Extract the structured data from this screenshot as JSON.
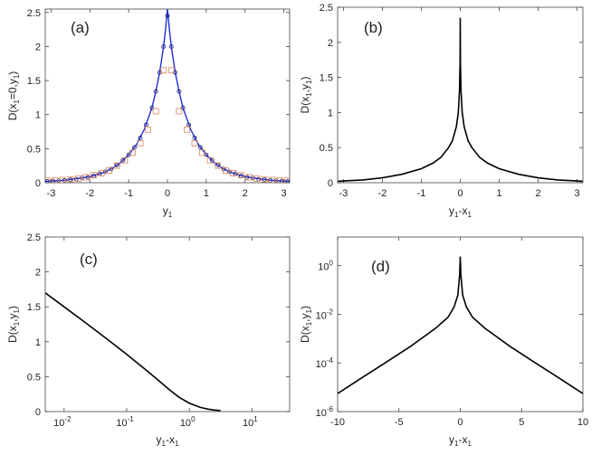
{
  "colors": {
    "axis": "#444444",
    "curve_a": "#1f2fd6",
    "marker_circle": "#1a1a66",
    "marker_square": "#d9835a",
    "curve": "#000000"
  },
  "chart_data": [
    {
      "id": "a",
      "panel_label": "(a)",
      "type": "line",
      "xlabel": "y",
      "xlabel_sub": "1",
      "ylabel_parts": [
        "D(x",
        "1",
        "=0,y",
        "1",
        ")"
      ],
      "xlim": [
        -3.15,
        3.15
      ],
      "ylim": [
        0,
        2.55
      ],
      "xscale": "linear",
      "yscale": "linear",
      "xticks": [
        -3,
        -2,
        -1,
        0,
        1,
        2,
        3
      ],
      "xticklabels": [
        "-3",
        "-2",
        "-1",
        "0",
        "1",
        "2",
        "3"
      ],
      "yticks": [
        0,
        0.5,
        1,
        1.5,
        2,
        2.5
      ],
      "yticklabels": [
        "0",
        "0.5",
        "1",
        "1.5",
        "2",
        "2.5"
      ],
      "grid": false,
      "series": [
        {
          "kind": "line",
          "x": [
            -3.14,
            -3,
            -2.8,
            -2.6,
            -2.4,
            -2.2,
            -2,
            -1.8,
            -1.6,
            -1.4,
            -1.2,
            -1,
            -0.8,
            -0.6,
            -0.4,
            -0.3,
            -0.2,
            -0.1,
            -0.05,
            0,
            0.05,
            0.1,
            0.2,
            0.3,
            0.4,
            0.6,
            0.8,
            1,
            1.2,
            1.4,
            1.6,
            1.8,
            2,
            2.2,
            2.4,
            2.6,
            2.8,
            3,
            3.14
          ],
          "y": [
            0.02,
            0.025,
            0.03,
            0.04,
            0.055,
            0.07,
            0.09,
            0.12,
            0.16,
            0.22,
            0.3,
            0.41,
            0.56,
            0.78,
            1.1,
            1.34,
            1.62,
            2.0,
            2.25,
            2.55,
            2.25,
            2.0,
            1.62,
            1.34,
            1.1,
            0.78,
            0.56,
            0.41,
            0.3,
            0.22,
            0.16,
            0.12,
            0.09,
            0.07,
            0.055,
            0.04,
            0.03,
            0.025,
            0.02
          ]
        },
        {
          "kind": "circles",
          "x": [
            -3.1,
            -2.95,
            -2.8,
            -2.65,
            -2.5,
            -2.35,
            -2.2,
            -2.05,
            -1.9,
            -1.75,
            -1.6,
            -1.45,
            -1.3,
            -1.15,
            -1,
            -0.85,
            -0.7,
            -0.55,
            -0.4,
            -0.3,
            -0.2,
            -0.1,
            0,
            0.1,
            0.2,
            0.3,
            0.4,
            0.55,
            0.7,
            0.85,
            1,
            1.15,
            1.3,
            1.45,
            1.6,
            1.75,
            1.9,
            2.05,
            2.2,
            2.35,
            2.5,
            2.65,
            2.8,
            2.95,
            3.1
          ],
          "y": [
            0.02,
            0.025,
            0.03,
            0.035,
            0.045,
            0.05,
            0.07,
            0.08,
            0.1,
            0.13,
            0.16,
            0.2,
            0.26,
            0.33,
            0.41,
            0.52,
            0.66,
            0.85,
            1.1,
            1.34,
            1.62,
            2.0,
            2.45,
            2.0,
            1.62,
            1.34,
            1.1,
            0.85,
            0.66,
            0.52,
            0.41,
            0.33,
            0.26,
            0.2,
            0.16,
            0.13,
            0.1,
            0.08,
            0.07,
            0.05,
            0.045,
            0.035,
            0.03,
            0.025,
            0.02
          ]
        },
        {
          "kind": "squares",
          "x": [
            -3.1,
            -2.9,
            -2.7,
            -2.5,
            -2.3,
            -2.1,
            -1.9,
            -1.7,
            -1.5,
            -1.3,
            -1.1,
            -0.9,
            -0.7,
            -0.5,
            -0.3,
            -0.1,
            0.1,
            0.3,
            0.5,
            0.7,
            0.9,
            1.1,
            1.3,
            1.5,
            1.7,
            1.9,
            2.1,
            2.3,
            2.5,
            2.7,
            2.9,
            3.1
          ],
          "y": [
            0.03,
            0.035,
            0.04,
            0.05,
            0.06,
            0.08,
            0.11,
            0.14,
            0.18,
            0.25,
            0.33,
            0.44,
            0.58,
            0.78,
            1.05,
            1.65,
            1.65,
            1.05,
            0.78,
            0.58,
            0.44,
            0.33,
            0.25,
            0.18,
            0.14,
            0.11,
            0.08,
            0.06,
            0.05,
            0.04,
            0.035,
            0.03
          ]
        }
      ]
    },
    {
      "id": "b",
      "panel_label": "(b)",
      "type": "line",
      "xlabel": "y",
      "xlabel_sub": "1",
      "xlabel_rest": "-x",
      "xlabel_sub2": "1",
      "ylabel_parts": [
        "D(x",
        "1",
        ",y",
        "1",
        ")"
      ],
      "xlim": [
        -3.15,
        3.15
      ],
      "ylim": [
        0,
        2.5
      ],
      "xscale": "linear",
      "yscale": "linear",
      "xticks": [
        -3,
        -2,
        -1,
        0,
        1,
        2,
        3
      ],
      "xticklabels": [
        "-3",
        "-2",
        "-1",
        "0",
        "1",
        "2",
        "3"
      ],
      "yticks": [
        0,
        0.5,
        1,
        1.5,
        2,
        2.5
      ],
      "yticklabels": [
        "0",
        "0.5",
        "1",
        "1.5",
        "2",
        "2.5"
      ],
      "grid": false,
      "series": [
        {
          "kind": "line",
          "x": [
            -3.14,
            -3,
            -2.5,
            -2,
            -1.5,
            -1,
            -0.7,
            -0.5,
            -0.3,
            -0.2,
            -0.1,
            -0.05,
            -0.02,
            -0.005,
            0,
            0.005,
            0.02,
            0.05,
            0.1,
            0.2,
            0.3,
            0.5,
            0.7,
            1,
            1.5,
            2,
            2.5,
            3,
            3.14
          ],
          "y": [
            0.02,
            0.025,
            0.04,
            0.07,
            0.12,
            0.2,
            0.28,
            0.36,
            0.5,
            0.6,
            0.8,
            1.0,
            1.3,
            1.7,
            2.35,
            1.7,
            1.3,
            1.0,
            0.8,
            0.6,
            0.5,
            0.36,
            0.28,
            0.2,
            0.12,
            0.07,
            0.04,
            0.025,
            0.02
          ]
        }
      ]
    },
    {
      "id": "c",
      "panel_label": "(c)",
      "type": "line",
      "xlabel": "y",
      "xlabel_sub": "1",
      "xlabel_rest": "-x",
      "xlabel_sub2": "1",
      "ylabel_parts": [
        "D(x",
        "1",
        ",y",
        "1",
        ")"
      ],
      "xlim": [
        0.005,
        40
      ],
      "ylim": [
        0,
        2.5
      ],
      "xscale": "log",
      "yscale": "linear",
      "xticks": [
        0.01,
        0.1,
        1,
        10
      ],
      "xticklabels": [
        [
          "10",
          "-2"
        ],
        [
          "10",
          "-1"
        ],
        [
          "10",
          "0"
        ],
        [
          "10",
          "1"
        ]
      ],
      "yticks": [
        0,
        0.5,
        1,
        1.5,
        2,
        2.5
      ],
      "yticklabels": [
        "0",
        "0.5",
        "1",
        "1.5",
        "2",
        "2.5"
      ],
      "grid": false,
      "series": [
        {
          "kind": "line",
          "x": [
            0.005,
            0.01,
            0.02,
            0.05,
            0.1,
            0.2,
            0.3,
            0.5,
            0.7,
            1,
            1.5,
            2,
            2.5,
            3.14
          ],
          "y": [
            1.7,
            1.5,
            1.3,
            1.03,
            0.82,
            0.6,
            0.47,
            0.3,
            0.2,
            0.12,
            0.06,
            0.035,
            0.022,
            0.015
          ]
        }
      ]
    },
    {
      "id": "d",
      "panel_label": "(d)",
      "type": "line",
      "xlabel": "y",
      "xlabel_sub": "1",
      "xlabel_rest": "-x",
      "xlabel_sub2": "1",
      "ylabel_parts": [
        "D(x",
        "1",
        ",y",
        "1",
        ")"
      ],
      "xlim": [
        -10,
        10
      ],
      "ylim": [
        1e-06,
        15
      ],
      "xscale": "linear",
      "yscale": "log",
      "xticks": [
        -10,
        -5,
        0,
        5,
        10
      ],
      "xticklabels": [
        "-10",
        "-5",
        "0",
        "5",
        "10"
      ],
      "yticks": [
        1e-06,
        0.0001,
        0.01,
        1
      ],
      "yticklabels": [
        [
          "10",
          "-6"
        ],
        [
          "10",
          "-4"
        ],
        [
          "10",
          "-2"
        ],
        [
          "10",
          "0"
        ]
      ],
      "grid": false,
      "series": [
        {
          "kind": "line",
          "x": [
            -10,
            -8,
            -6,
            -4,
            -2,
            -1,
            -0.5,
            -0.2,
            -0.05,
            0,
            0.05,
            0.2,
            0.5,
            1,
            2,
            4,
            6,
            8,
            10
          ],
          "y": [
            5.5e-06,
            2.5e-05,
            0.00011,
            0.0005,
            0.0027,
            0.0075,
            0.02,
            0.06,
            0.4,
            2.35,
            0.4,
            0.06,
            0.02,
            0.0075,
            0.0027,
            0.0005,
            0.00011,
            2.5e-05,
            5.5e-06
          ]
        }
      ]
    }
  ]
}
